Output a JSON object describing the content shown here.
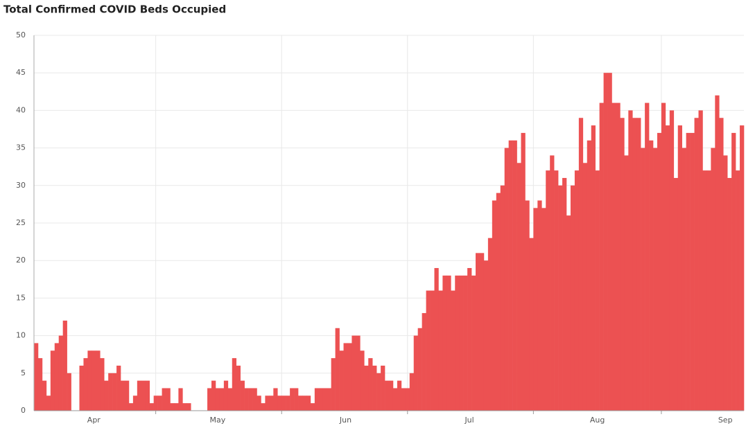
{
  "chart_data": {
    "type": "bar",
    "title": "Total Confirmed COVID Beds Occupied",
    "categories": [
      null,
      null,
      null,
      null,
      null,
      null,
      null,
      null,
      null,
      null,
      null,
      null,
      null,
      null,
      "Apr",
      null,
      null,
      null,
      null,
      null,
      null,
      null,
      null,
      null,
      null,
      null,
      null,
      null,
      null,
      null,
      null,
      null,
      null,
      null,
      null,
      null,
      null,
      null,
      null,
      null,
      null,
      null,
      null,
      null,
      "May",
      null,
      null,
      null,
      null,
      null,
      null,
      null,
      null,
      null,
      null,
      null,
      null,
      null,
      null,
      null,
      null,
      null,
      null,
      null,
      null,
      null,
      null,
      null,
      null,
      null,
      null,
      null,
      null,
      null,
      null,
      "Jun",
      null,
      null,
      null,
      null,
      null,
      null,
      null,
      null,
      null,
      null,
      null,
      null,
      null,
      null,
      null,
      null,
      null,
      null,
      null,
      null,
      null,
      null,
      null,
      null,
      null,
      null,
      null,
      null,
      null,
      "Jul",
      null,
      null,
      null,
      null,
      null,
      null,
      null,
      null,
      null,
      null,
      null,
      null,
      null,
      null,
      null,
      null,
      null,
      null,
      null,
      null,
      null,
      null,
      null,
      null,
      null,
      null,
      null,
      null,
      null,
      null,
      "Aug",
      null,
      null,
      null,
      null,
      null,
      null,
      null,
      null,
      null,
      null,
      null,
      null,
      null,
      null,
      null,
      null,
      null,
      null,
      null,
      null,
      null,
      null,
      null,
      null,
      null,
      null,
      null,
      null,
      null,
      null,
      "Sep",
      null,
      null,
      null,
      null
    ],
    "values": [
      9,
      7,
      4,
      2,
      8,
      9,
      10,
      12,
      5,
      0,
      0,
      6,
      7,
      8,
      8,
      8,
      7,
      4,
      5,
      5,
      6,
      4,
      4,
      1,
      2,
      4,
      4,
      4,
      1,
      2,
      2,
      3,
      3,
      1,
      1,
      3,
      1,
      1,
      0,
      0,
      0,
      0,
      3,
      4,
      3,
      3,
      4,
      3,
      7,
      6,
      4,
      3,
      3,
      3,
      2,
      1,
      2,
      2,
      3,
      2,
      2,
      2,
      3,
      3,
      2,
      2,
      2,
      1,
      3,
      3,
      3,
      3,
      7,
      11,
      8,
      9,
      9,
      10,
      10,
      8,
      6,
      7,
      6,
      5,
      6,
      4,
      4,
      3,
      4,
      3,
      3,
      5,
      10,
      11,
      13,
      16,
      16,
      19,
      16,
      18,
      18,
      16,
      18,
      18,
      18,
      19,
      18,
      21,
      21,
      20,
      23,
      28,
      29,
      30,
      35,
      36,
      36,
      33,
      37,
      28,
      23,
      27,
      28,
      27,
      32,
      34,
      32,
      30,
      31,
      26,
      30,
      32,
      39,
      33,
      36,
      38,
      32,
      41,
      45,
      45,
      41,
      41,
      39,
      34,
      40,
      39,
      39,
      35,
      41,
      36,
      35,
      37,
      41,
      38,
      40,
      31,
      38,
      35,
      37,
      37,
      39,
      40,
      32,
      32,
      35,
      42,
      39,
      34,
      31,
      37,
      32,
      38
    ],
    "color": "#ec5152",
    "ylim": [
      0,
      50
    ],
    "yticks": [
      0,
      5,
      10,
      15,
      20,
      25,
      30,
      35,
      40,
      45,
      50
    ],
    "grid": true
  }
}
